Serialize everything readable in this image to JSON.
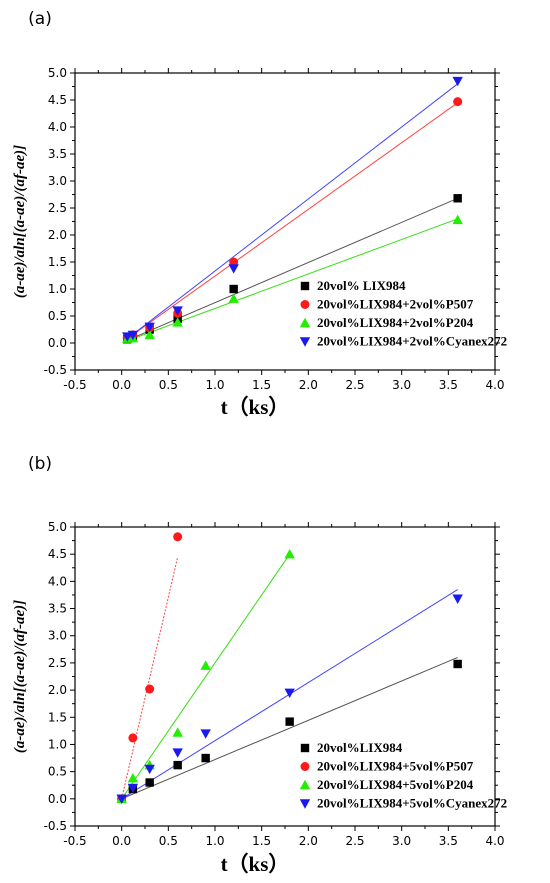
{
  "chart_data": [
    {
      "panel_label": "(a)",
      "type": "scatter",
      "xlabel": "t（ks）",
      "ylabel": "(a-ae)/aln[(a-ae)/(af-ae)]",
      "xlim": [
        -0.5,
        4.0
      ],
      "ylim": [
        -0.5,
        5.0
      ],
      "xticks": [
        "-0.5",
        "0.0",
        "0.5",
        "1.0",
        "1.5",
        "2.0",
        "2.5",
        "3.0",
        "3.5",
        "4.0"
      ],
      "yticks": [
        "-0.5",
        "0.0",
        "0.5",
        "1.0",
        "1.5",
        "2.0",
        "2.5",
        "3.0",
        "3.5",
        "4.0",
        "4.5",
        "5.0"
      ],
      "legend_position": "lower-right",
      "series": [
        {
          "name": "20vol% LIX984",
          "marker": "square",
          "color": "#000000",
          "line_color": "#555555",
          "x": [
            0.06,
            0.12,
            0.3,
            0.6,
            1.2,
            3.6
          ],
          "y": [
            0.07,
            0.12,
            0.25,
            0.45,
            1.0,
            2.68
          ],
          "fit": [
            [
              0.06,
              0.05
            ],
            [
              3.6,
              2.68
            ]
          ]
        },
        {
          "name": "20vol%LIX984+2vol%P507",
          "marker": "circle",
          "color": "#ff1a1a",
          "line_color": "#ff4444",
          "x": [
            0.06,
            0.12,
            0.3,
            0.6,
            1.2,
            3.6
          ],
          "y": [
            0.1,
            0.15,
            0.28,
            0.55,
            1.5,
            4.47
          ],
          "fit": [
            [
              0.06,
              0.08
            ],
            [
              3.6,
              4.45
            ]
          ]
        },
        {
          "name": "20vol%LIX984+2vol%P204",
          "marker": "triangle-up",
          "color": "#22ee00",
          "line_color": "#33dd11",
          "x": [
            0.06,
            0.12,
            0.3,
            0.6,
            1.2,
            3.6
          ],
          "y": [
            0.08,
            0.09,
            0.15,
            0.38,
            0.82,
            2.28
          ],
          "fit": [
            [
              0.06,
              0.04
            ],
            [
              3.6,
              2.3
            ]
          ]
        },
        {
          "name": "20vol%LIX984+2vol%Cyanex272",
          "marker": "triangle-down",
          "color": "#1a1aee",
          "line_color": "#4444ff",
          "x": [
            0.06,
            0.12,
            0.3,
            0.6,
            1.2,
            3.6
          ],
          "y": [
            0.12,
            0.15,
            0.3,
            0.6,
            1.38,
            4.85
          ],
          "fit": [
            [
              0.06,
              0.08
            ],
            [
              3.6,
              4.8
            ]
          ]
        }
      ]
    },
    {
      "panel_label": "(b)",
      "type": "scatter",
      "xlabel": "t（ks）",
      "ylabel": "(a-ae)/aln[(a-ae)/(af-ae)]",
      "xlim": [
        -0.5,
        4.0
      ],
      "ylim": [
        -0.5,
        5.0
      ],
      "xticks": [
        "-0.5",
        "0.0",
        "0.5",
        "1.0",
        "1.5",
        "2.0",
        "2.5",
        "3.0",
        "3.5",
        "4.0"
      ],
      "yticks": [
        "-0.5",
        "0.0",
        "0.5",
        "1.0",
        "1.5",
        "2.0",
        "2.5",
        "3.0",
        "3.5",
        "4.0",
        "4.5",
        "5.0"
      ],
      "legend_position": "lower-right",
      "series": [
        {
          "name": "20vol%LIX984",
          "marker": "square",
          "color": "#000000",
          "line_color": "#555555",
          "x": [
            0.0,
            0.12,
            0.3,
            0.6,
            0.9,
            1.8,
            3.6
          ],
          "y": [
            0.0,
            0.18,
            0.3,
            0.62,
            0.75,
            1.42,
            2.48
          ],
          "fit": [
            [
              0.0,
              0.0
            ],
            [
              3.6,
              2.6
            ]
          ]
        },
        {
          "name": "20vol%LIX984+5vol%P507",
          "marker": "circle",
          "color": "#ff1a1a",
          "line_color": "#ff4444",
          "x": [
            0.0,
            0.12,
            0.3,
            0.6
          ],
          "y": [
            0.0,
            1.12,
            2.02,
            4.82
          ],
          "fit": [
            [
              0.0,
              0.0
            ],
            [
              0.6,
              4.45
            ]
          ]
        },
        {
          "name": "20vol%LIX984+5vol%P204",
          "marker": "triangle-up",
          "color": "#22ee00",
          "line_color": "#33dd11",
          "x": [
            0.0,
            0.12,
            0.3,
            0.6,
            0.9,
            1.8
          ],
          "y": [
            0.0,
            0.38,
            0.62,
            1.22,
            2.45,
            4.5
          ],
          "fit": [
            [
              0.0,
              0.0
            ],
            [
              1.8,
              4.5
            ]
          ]
        },
        {
          "name": "20vol%LIX984+5vol%Cyanex272",
          "marker": "triangle-down",
          "color": "#1a1aee",
          "line_color": "#4444ff",
          "x": [
            0.0,
            0.12,
            0.3,
            0.6,
            0.9,
            1.8,
            3.6
          ],
          "y": [
            0.0,
            0.2,
            0.55,
            0.85,
            1.2,
            1.95,
            3.68
          ],
          "fit": [
            [
              0.0,
              0.0
            ],
            [
              3.6,
              3.85
            ]
          ]
        }
      ]
    }
  ]
}
